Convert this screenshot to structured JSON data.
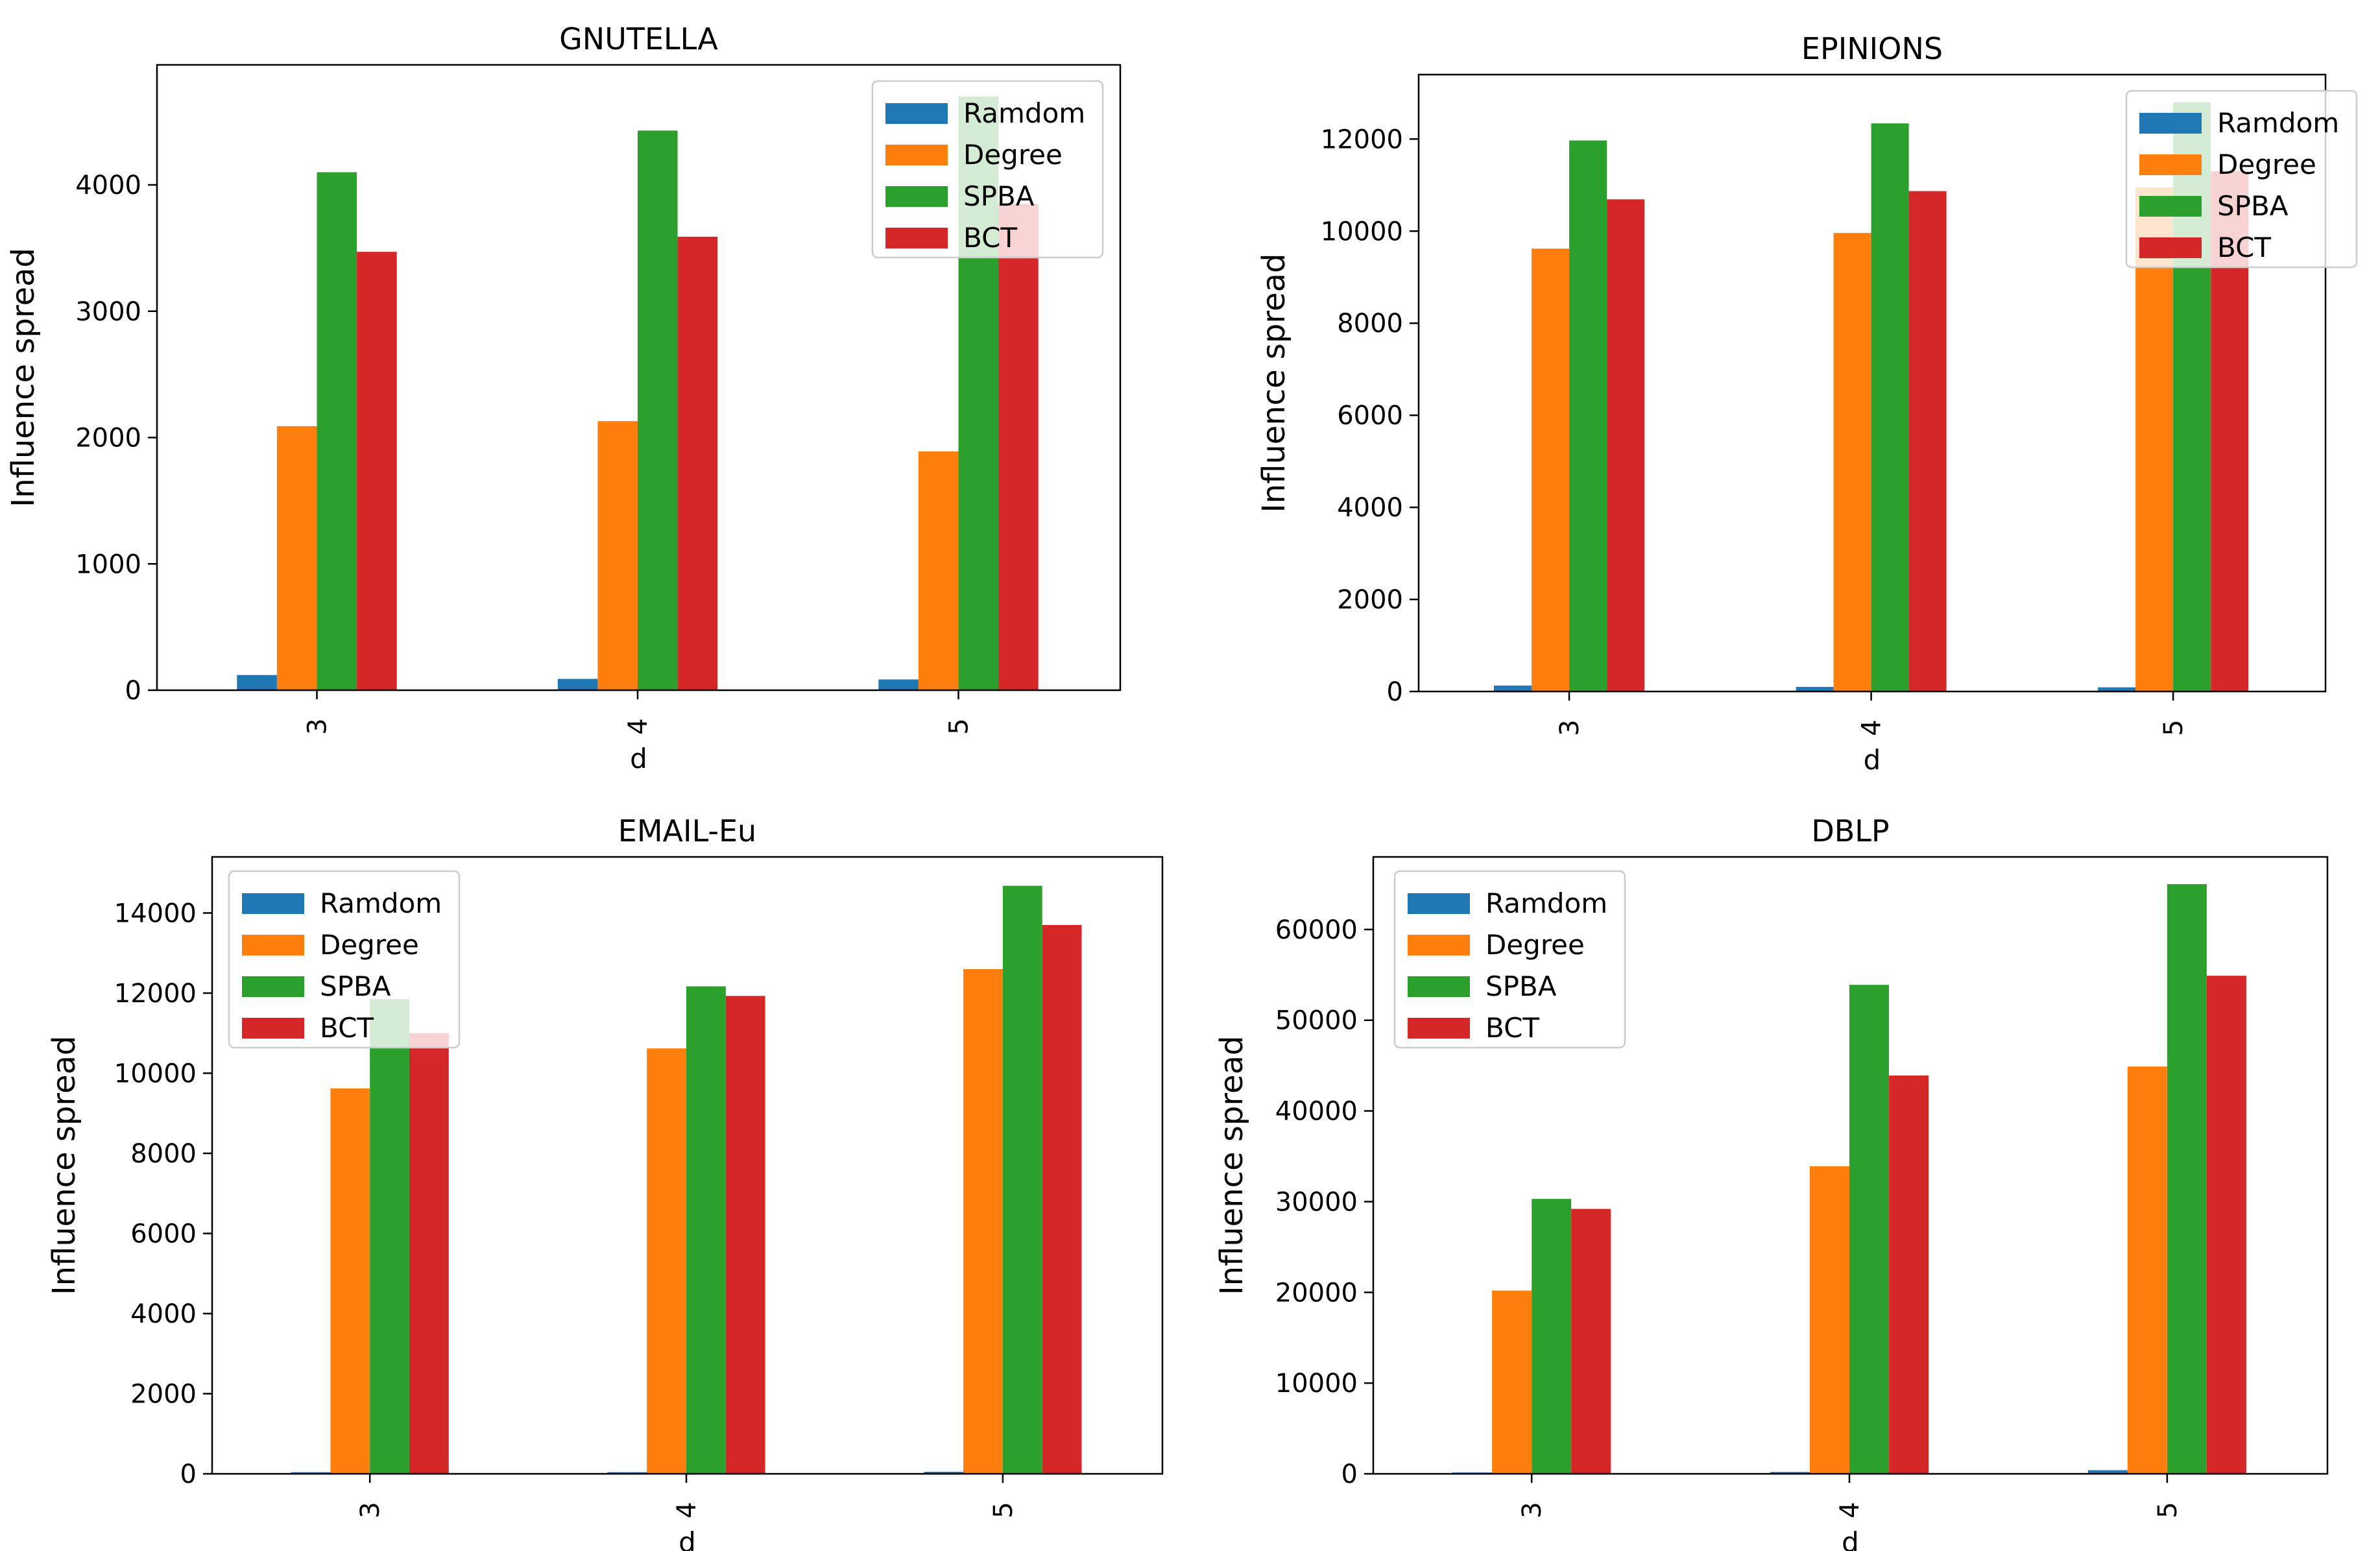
{
  "figure": {
    "series_colors": [
      "#1f77b4",
      "#ff7f0e",
      "#2ca02c",
      "#d62728"
    ]
  },
  "chart_data": [
    {
      "type": "bar",
      "title": "GNUTELLA",
      "xlabel": "d",
      "ylabel": "Influence spread",
      "categories": [
        "3",
        "4",
        "5"
      ],
      "ylim": [
        0,
        4950
      ],
      "yticks": [
        0,
        1000,
        2000,
        3000,
        4000
      ],
      "ytick_labels": [
        "0",
        "1000",
        "2000",
        "3000",
        "4000"
      ],
      "legend_position": "top-right",
      "series": [
        {
          "name": "Ramdom",
          "values": [
            120,
            90,
            85
          ]
        },
        {
          "name": "Degree",
          "values": [
            2090,
            2130,
            1890
          ]
        },
        {
          "name": "SPBA",
          "values": [
            4100,
            4430,
            4700
          ]
        },
        {
          "name": "BCT",
          "values": [
            3470,
            3590,
            3850
          ]
        }
      ]
    },
    {
      "type": "bar",
      "title": "EPINIONS",
      "xlabel": "d",
      "ylabel": "Influence spread",
      "categories": [
        "3",
        "4",
        "5"
      ],
      "ylim": [
        0,
        13400
      ],
      "yticks": [
        0,
        2000,
        4000,
        6000,
        8000,
        10000,
        12000
      ],
      "ytick_labels": [
        "0",
        "2000",
        "4000",
        "6000",
        "8000",
        "10000",
        "12000"
      ],
      "legend_position": "top-right",
      "series": [
        {
          "name": "Ramdom",
          "values": [
            130,
            100,
            90
          ]
        },
        {
          "name": "Degree",
          "values": [
            9620,
            9960,
            10950
          ]
        },
        {
          "name": "SPBA",
          "values": [
            11970,
            12340,
            12800
          ]
        },
        {
          "name": "BCT",
          "values": [
            10690,
            10870,
            11300
          ]
        }
      ]
    },
    {
      "type": "bar",
      "title": "EMAIL-Eu",
      "xlabel": "d",
      "ylabel": "Influence spread",
      "categories": [
        "3",
        "4",
        "5"
      ],
      "ylim": [
        0,
        15400
      ],
      "yticks": [
        0,
        2000,
        4000,
        6000,
        8000,
        10000,
        12000,
        14000
      ],
      "ytick_labels": [
        "0",
        "2000",
        "4000",
        "6000",
        "8000",
        "10000",
        "12000",
        "14000"
      ],
      "legend_position": "top-left",
      "series": [
        {
          "name": "Ramdom",
          "values": [
            40,
            40,
            50
          ]
        },
        {
          "name": "Degree",
          "values": [
            9620,
            10620,
            12600
          ]
        },
        {
          "name": "SPBA",
          "values": [
            11850,
            12170,
            14680
          ]
        },
        {
          "name": "BCT",
          "values": [
            11000,
            11930,
            13700
          ]
        }
      ]
    },
    {
      "type": "bar",
      "title": "DBLP",
      "xlabel": "d",
      "ylabel": "Influence spread",
      "categories": [
        "3",
        "4",
        "5"
      ],
      "ylim": [
        0,
        68000
      ],
      "yticks": [
        0,
        10000,
        20000,
        30000,
        40000,
        50000,
        60000
      ],
      "ytick_labels": [
        "0",
        "10000",
        "20000",
        "30000",
        "40000",
        "50000",
        "60000"
      ],
      "legend_position": "top-left",
      "series": [
        {
          "name": "Ramdom",
          "values": [
            150,
            200,
            400
          ]
        },
        {
          "name": "Degree",
          "values": [
            20200,
            33900,
            44900
          ]
        },
        {
          "name": "SPBA",
          "values": [
            30300,
            53900,
            65000
          ]
        },
        {
          "name": "BCT",
          "values": [
            29200,
            43900,
            54900
          ]
        }
      ]
    }
  ]
}
